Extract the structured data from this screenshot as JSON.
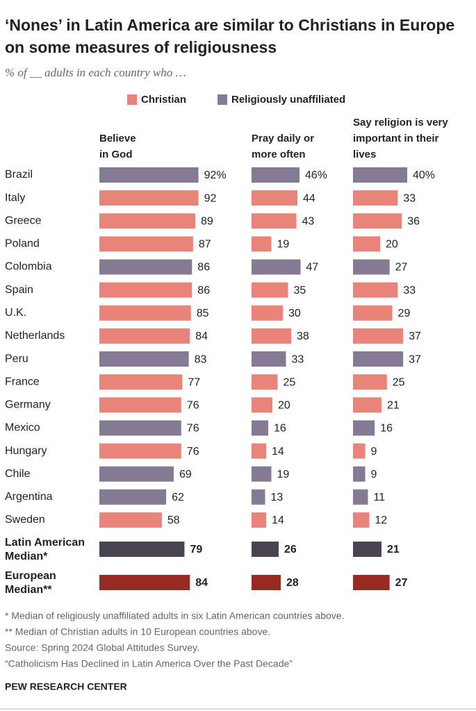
{
  "chart_data": {
    "type": "bar",
    "orientation": "horizontal",
    "title": "‘Nones’ in Latin America are similar to Christians in Europe on some measures of religiousness",
    "subtitle": "% of __ adults in each country who …",
    "legend": [
      {
        "name": "Christian",
        "color": "#e8847a"
      },
      {
        "name": "Religiously unaffiliated",
        "color": "#857a93"
      }
    ],
    "categories": [
      "Brazil",
      "Italy",
      "Greece",
      "Poland",
      "Colombia",
      "Spain",
      "U.K.",
      "Netherlands",
      "Peru",
      "France",
      "Germany",
      "Mexico",
      "Hungary",
      "Chile",
      "Argentina",
      "Sweden",
      [
        "Latin American",
        "Median*"
      ],
      [
        "European",
        "Median**"
      ]
    ],
    "bar_colors": [
      "#857a93",
      "#e8847a",
      "#e8847a",
      "#e8847a",
      "#857a93",
      "#e8847a",
      "#e8847a",
      "#e8847a",
      "#857a93",
      "#e8847a",
      "#e8847a",
      "#857a93",
      "#e8847a",
      "#857a93",
      "#857a93",
      "#e8847a",
      "#4a4452",
      "#952b22"
    ],
    "panels": [
      {
        "title": [
          "Believe",
          "in God"
        ],
        "xlim": [
          0,
          100
        ],
        "values": [
          92,
          92,
          89,
          87,
          86,
          86,
          85,
          84,
          83,
          77,
          76,
          76,
          76,
          69,
          62,
          58,
          79,
          84
        ],
        "value_labels": [
          "92%",
          "92",
          "89",
          "87",
          "86",
          "86",
          "85",
          "84",
          "83",
          "77",
          "76",
          "76",
          "76",
          "69",
          "62",
          "58",
          "79",
          "84"
        ]
      },
      {
        "title": [
          "Pray daily or",
          "more often"
        ],
        "xlim": [
          0,
          100
        ],
        "values": [
          46,
          44,
          43,
          19,
          47,
          35,
          30,
          38,
          33,
          25,
          20,
          16,
          14,
          19,
          13,
          14,
          26,
          28
        ],
        "value_labels": [
          "46%",
          "44",
          "43",
          "19",
          "47",
          "35",
          "30",
          "38",
          "33",
          "25",
          "20",
          "16",
          "14",
          "19",
          "13",
          "14",
          "26",
          "28"
        ]
      },
      {
        "title": [
          "Say religion is very",
          "important in their",
          "lives"
        ],
        "xlim": [
          0,
          100
        ],
        "values": [
          40,
          33,
          36,
          20,
          27,
          33,
          29,
          37,
          37,
          25,
          21,
          16,
          9,
          9,
          11,
          12,
          21,
          27
        ],
        "value_labels": [
          "40%",
          "33",
          "36",
          "20",
          "27",
          "33",
          "29",
          "37",
          "37",
          "25",
          "21",
          "16",
          "9",
          "9",
          "11",
          "12",
          "21",
          "27"
        ]
      }
    ],
    "notes": [
      "* Median of religiously unaffiliated adults in six Latin American countries above.",
      "** Median of Christian adults in 10 European countries above.",
      "Source: Spring 2024 Global Attitudes Survey.",
      "“Catholicism Has Declined in Latin America Over the Past Decade”"
    ],
    "source_org": "PEW RESEARCH CENTER"
  }
}
